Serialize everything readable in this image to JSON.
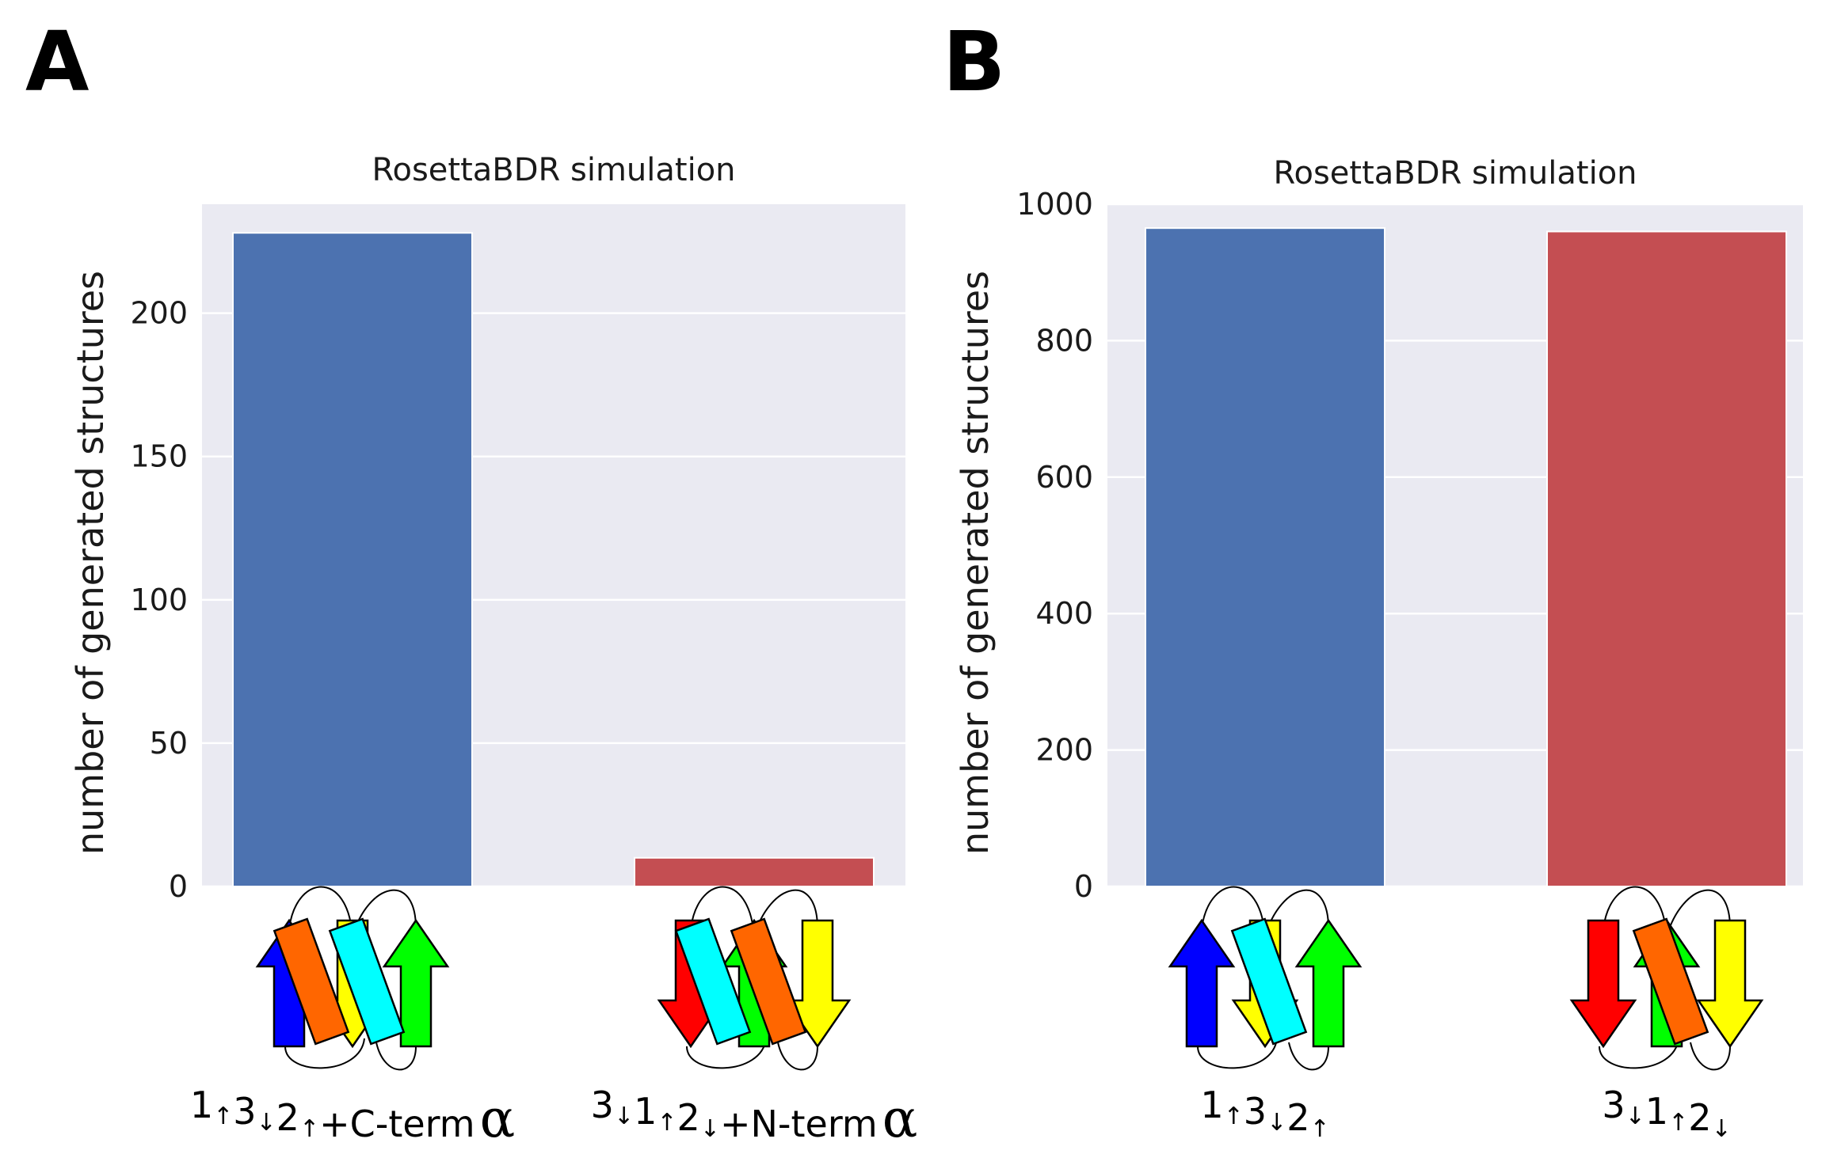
{
  "panels": [
    {
      "label": "A",
      "chart_data": {
        "type": "bar",
        "title": "RosettaBDR simulation",
        "xlabel": "",
        "ylabel": "number of generated structures",
        "categories": [
          "1↑3↓2↑+C-term α",
          "3↓1↑2↓+N-term α"
        ],
        "values": [
          228,
          10
        ],
        "bar_colors": [
          "#4c72b0",
          "#c44e52"
        ],
        "ylim": [
          0,
          238
        ],
        "yticks": [
          "0",
          "50",
          "100",
          "150",
          "200"
        ],
        "grid": true
      },
      "topologies": [
        {
          "order": [
            "blue-up",
            "yellow-down",
            "green-up"
          ],
          "helix_position": "C-term",
          "helix_colors": [
            "orange",
            "cyan"
          ],
          "label_parts": [
            "1",
            "↑",
            "3",
            "↓",
            "2",
            "↑",
            "+C-term",
            "α"
          ]
        },
        {
          "order": [
            "red-down",
            "green-up",
            "yellow-down"
          ],
          "helix_position": "N-term",
          "helix_colors": [
            "cyan",
            "orange"
          ],
          "label_parts": [
            "3",
            "↓",
            "1",
            "↑",
            "2",
            "↓",
            "+N-term",
            "α"
          ]
        }
      ]
    },
    {
      "label": "B",
      "chart_data": {
        "type": "bar",
        "title": "RosettaBDR simulation",
        "xlabel": "",
        "ylabel": "number of generated structures",
        "categories": [
          "1↑3↓2↑",
          "3↓1↑2↓"
        ],
        "values": [
          965,
          960
        ],
        "bar_colors": [
          "#4c72b0",
          "#c44e52"
        ],
        "ylim": [
          0,
          1000
        ],
        "yticks": [
          "0",
          "200",
          "400",
          "600",
          "800",
          "1000"
        ],
        "grid": true
      },
      "topologies": [
        {
          "order": [
            "blue-up",
            "yellow-down",
            "green-up"
          ],
          "helix_position": "middle",
          "helix_colors": [
            "cyan"
          ],
          "label_parts": [
            "1",
            "↑",
            "3",
            "↓",
            "2",
            "↑"
          ]
        },
        {
          "order": [
            "red-down",
            "green-up",
            "yellow-down"
          ],
          "helix_position": "middle",
          "helix_colors": [
            "orange"
          ],
          "label_parts": [
            "3",
            "↓",
            "1",
            "↑",
            "2",
            "↓"
          ]
        }
      ]
    }
  ],
  "colors": {
    "plot_bg": "#eaeaf2",
    "grid": "#ffffff",
    "strand_blue": "#0000ff",
    "strand_yellow": "#ffff00",
    "strand_green": "#00ff00",
    "strand_red": "#ff0000",
    "helix_orange": "#ff6600",
    "helix_cyan": "#00ffff"
  }
}
